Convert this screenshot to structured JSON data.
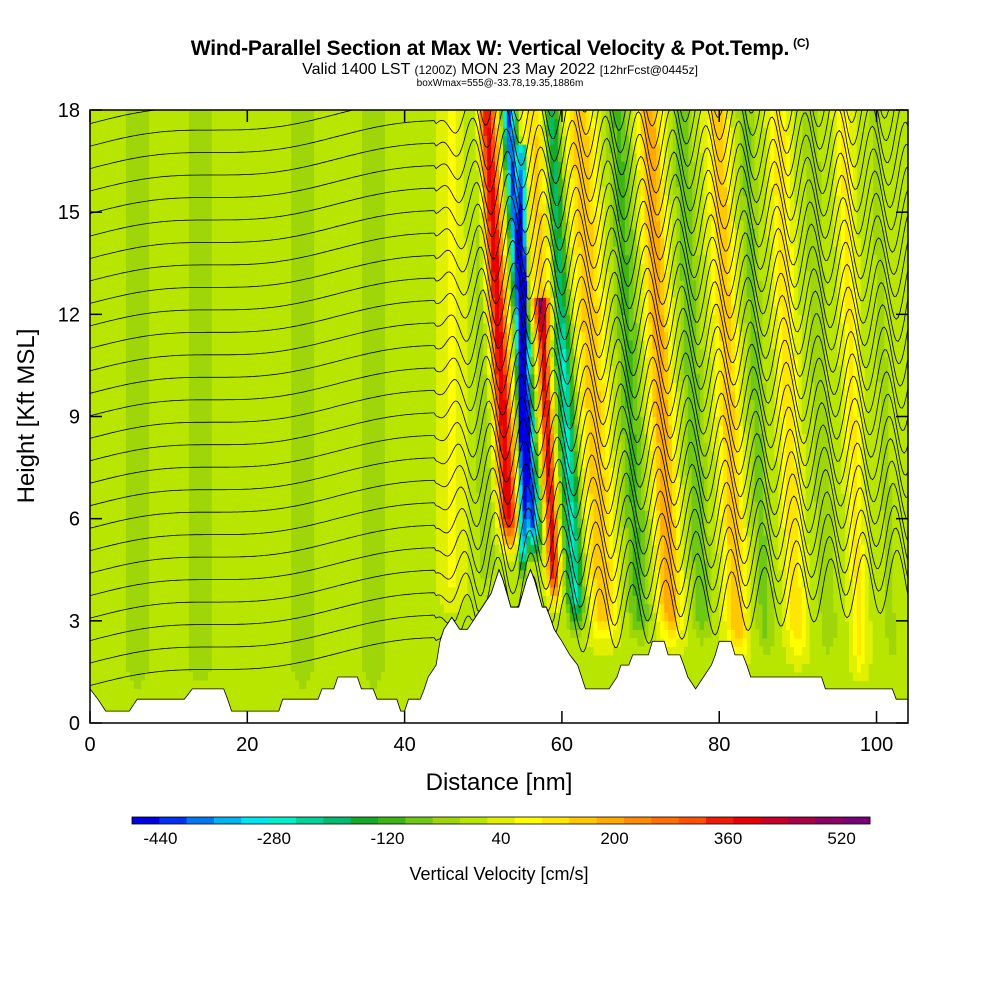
{
  "header": {
    "title": "Wind-Parallel Section at Max W: Vertical Velocity & Pot.Temp.",
    "copyright": "(C)",
    "valid_prefix": "Valid 1400 LST",
    "valid_utc": "(1200Z)",
    "valid_date": "MON 23 May 2022",
    "forecast": "[12hrFcst@0445z]",
    "box_info": "boxWmax=555@-33.78,19.35,1886m"
  },
  "chart_data": {
    "type": "heatmap",
    "xlabel": "Distance [nm]",
    "ylabel": "Height [Kft MSL]",
    "xlim": [
      0,
      104
    ],
    "ylim": [
      0,
      18
    ],
    "x_ticks": [
      0,
      20,
      40,
      60,
      80,
      100
    ],
    "y_ticks": [
      0,
      3,
      6,
      9,
      12,
      15,
      18
    ],
    "colorbar": {
      "label": "Vertical Velocity [cm/s]",
      "levels": [
        -480,
        -440,
        -400,
        -360,
        -320,
        -280,
        -240,
        -200,
        -160,
        -120,
        -80,
        -40,
        0,
        40,
        80,
        120,
        160,
        200,
        240,
        280,
        320,
        360,
        400,
        440,
        480,
        520,
        560
      ],
      "tick_labels": [
        "-440",
        "-280",
        "-120",
        "40",
        "200",
        "360",
        "520"
      ],
      "tick_values": [
        -440,
        -280,
        -120,
        40,
        200,
        360,
        520
      ],
      "colors": [
        "#0000e0",
        "#0032f0",
        "#0078f0",
        "#00b4f0",
        "#00e6f0",
        "#00eec8",
        "#00d29a",
        "#00bc6e",
        "#14aa28",
        "#3cb414",
        "#6ec814",
        "#9ed60a",
        "#b8e600",
        "#e0f000",
        "#ffff00",
        "#ffe600",
        "#ffc800",
        "#ffaa00",
        "#ff8c00",
        "#ff6e00",
        "#ff5000",
        "#f01e00",
        "#e60000",
        "#c80028",
        "#aa0046",
        "#8c0064",
        "#780078"
      ]
    },
    "terrain_profile": [
      [
        0,
        1.0
      ],
      [
        1,
        0.7
      ],
      [
        2,
        0.35
      ],
      [
        5,
        0.35
      ],
      [
        6,
        0.7
      ],
      [
        12,
        0.7
      ],
      [
        13,
        1.0
      ],
      [
        17,
        1.0
      ],
      [
        17.5,
        0.7
      ],
      [
        18,
        0.35
      ],
      [
        24,
        0.35
      ],
      [
        24.5,
        0.7
      ],
      [
        29,
        0.7
      ],
      [
        29.5,
        1.0
      ],
      [
        31,
        1.0
      ],
      [
        31.5,
        1.35
      ],
      [
        34,
        1.35
      ],
      [
        34.5,
        1.0
      ],
      [
        36,
        1.0
      ],
      [
        36.5,
        0.7
      ],
      [
        39,
        0.7
      ],
      [
        39.5,
        0.35
      ],
      [
        40,
        0.35
      ],
      [
        40.5,
        0.7
      ],
      [
        42,
        0.7
      ],
      [
        42.5,
        1.0
      ],
      [
        43,
        1.35
      ],
      [
        44,
        1.7
      ],
      [
        44.5,
        2.4
      ],
      [
        45,
        2.75
      ],
      [
        46,
        3.1
      ],
      [
        47,
        2.75
      ],
      [
        48,
        2.75
      ],
      [
        49,
        3.1
      ],
      [
        50,
        3.45
      ],
      [
        51,
        3.8
      ],
      [
        52,
        4.5
      ],
      [
        52.5,
        4.2
      ],
      [
        53,
        3.8
      ],
      [
        53.5,
        3.4
      ],
      [
        54.5,
        3.4
      ],
      [
        55,
        3.8
      ],
      [
        55.5,
        4.2
      ],
      [
        56,
        4.5
      ],
      [
        56.5,
        4.2
      ],
      [
        57,
        3.8
      ],
      [
        57.5,
        3.4
      ],
      [
        58,
        3.4
      ],
      [
        58.5,
        3.1
      ],
      [
        59,
        2.75
      ],
      [
        60,
        2.4
      ],
      [
        61,
        2.0
      ],
      [
        62,
        1.7
      ],
      [
        62.5,
        1.35
      ],
      [
        63,
        1.0
      ],
      [
        66,
        1.0
      ],
      [
        67,
        1.35
      ],
      [
        67.5,
        1.7
      ],
      [
        68.5,
        1.7
      ],
      [
        69,
        2.0
      ],
      [
        71,
        2.0
      ],
      [
        71.5,
        2.4
      ],
      [
        73,
        2.4
      ],
      [
        73.5,
        2.0
      ],
      [
        75,
        2.0
      ],
      [
        75.5,
        1.7
      ],
      [
        76,
        1.35
      ],
      [
        77,
        1.0
      ],
      [
        78,
        1.35
      ],
      [
        79,
        1.7
      ],
      [
        79.5,
        2.0
      ],
      [
        80,
        2.4
      ],
      [
        81.5,
        2.4
      ],
      [
        82,
        2.0
      ],
      [
        83,
        2.0
      ],
      [
        83.5,
        1.7
      ],
      [
        84,
        1.35
      ],
      [
        93,
        1.35
      ],
      [
        93.5,
        1.0
      ],
      [
        102,
        1.0
      ],
      [
        102.5,
        0.7
      ],
      [
        104,
        0.7
      ]
    ],
    "velocity_features": [
      {
        "x": 53.5,
        "z0": 4.8,
        "z1": 18,
        "tilt": -1.4,
        "width": 1.2,
        "value": 400
      },
      {
        "x": 56.6,
        "z0": 4.6,
        "z1": 18,
        "tilt": -1.5,
        "width": 0.9,
        "value": -460
      },
      {
        "x": 55.0,
        "z0": 4.0,
        "z1": 17,
        "tilt": 0.0,
        "width": 0.5,
        "value": -420
      },
      {
        "x": 59.2,
        "z0": 3.2,
        "z1": 12.5,
        "tilt": -1.2,
        "width": 0.8,
        "value": 380
      },
      {
        "x": 62.0,
        "z0": 2.4,
        "z1": 18,
        "tilt": -1.3,
        "width": 1.1,
        "value": -280
      },
      {
        "x": 58.0,
        "z0": 11.0,
        "z1": 18,
        "tilt": -1.0,
        "width": 2.5,
        "value": 140
      },
      {
        "x": 65.5,
        "z0": 2.0,
        "z1": 18,
        "tilt": -1.2,
        "width": 1.8,
        "value": 160
      },
      {
        "x": 70.0,
        "z0": 2.0,
        "z1": 18,
        "tilt": -1.1,
        "width": 1.5,
        "value": -120
      },
      {
        "x": 74.0,
        "z0": 2.0,
        "z1": 18,
        "tilt": -1.1,
        "width": 1.5,
        "value": 200
      },
      {
        "x": 78.0,
        "z0": 2.0,
        "z1": 18,
        "tilt": -1.1,
        "width": 1.3,
        "value": -100
      },
      {
        "x": 82.5,
        "z0": 1.5,
        "z1": 18,
        "tilt": -1.0,
        "width": 1.4,
        "value": 160
      },
      {
        "x": 86.0,
        "z0": 1.5,
        "z1": 18,
        "tilt": -1.0,
        "width": 1.2,
        "value": -80
      },
      {
        "x": 90.0,
        "z0": 1.5,
        "z1": 18,
        "tilt": -0.9,
        "width": 1.2,
        "value": 120
      },
      {
        "x": 94.0,
        "z0": 1.5,
        "z1": 18,
        "tilt": -0.9,
        "width": 1.2,
        "value": -60
      },
      {
        "x": 98.0,
        "z0": 1.0,
        "z1": 18,
        "tilt": -0.8,
        "width": 1.0,
        "value": 100
      },
      {
        "x": 102.0,
        "z0": 1.0,
        "z1": 18,
        "tilt": -0.8,
        "width": 1.0,
        "value": -40
      },
      {
        "x": 6.0,
        "z0": 0.5,
        "z1": 18,
        "tilt": 0.0,
        "width": 2.0,
        "value": -60
      },
      {
        "x": 14.0,
        "z0": 0.5,
        "z1": 18,
        "tilt": 0.0,
        "width": 2.0,
        "value": -50
      },
      {
        "x": 27.0,
        "z0": 0.5,
        "z1": 18,
        "tilt": 0.0,
        "width": 1.8,
        "value": -60
      },
      {
        "x": 36.0,
        "z0": 0.5,
        "z1": 18,
        "tilt": 0.0,
        "width": 2.0,
        "value": -60
      },
      {
        "x": 46.0,
        "z0": 3.0,
        "z1": 18,
        "tilt": 0.0,
        "width": 1.5,
        "value": 60
      },
      {
        "x": 50.5,
        "z0": 3.5,
        "z1": 18,
        "tilt": -0.5,
        "width": 1.2,
        "value": -60
      }
    ],
    "theta_contours": {
      "count": 26,
      "base_height": 1.1,
      "spacing": 0.66,
      "wave_start_x": 44,
      "wave_amplitude": 0.9
    }
  }
}
